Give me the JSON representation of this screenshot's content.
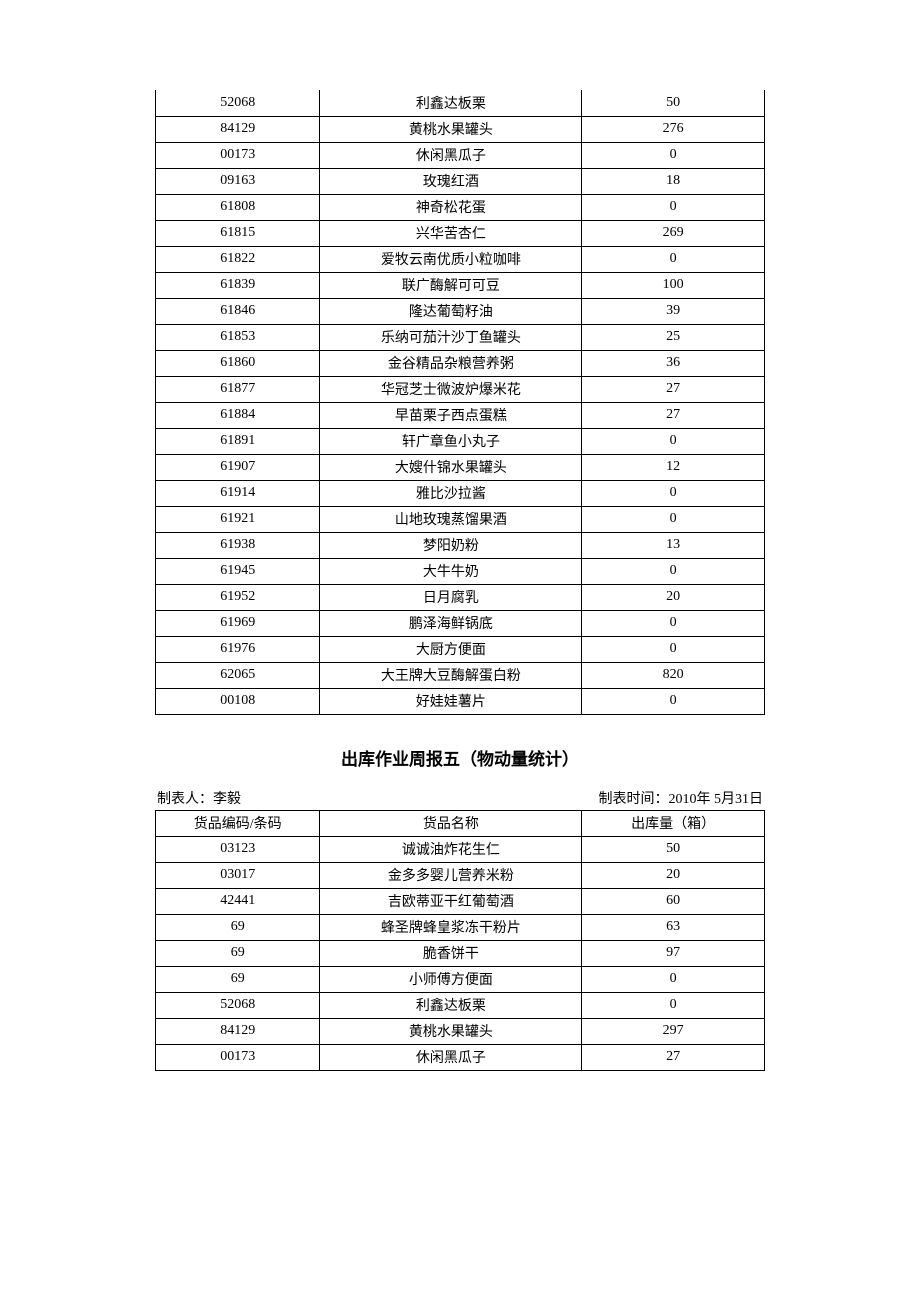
{
  "table1": {
    "rows": [
      {
        "code": "52068",
        "name": "利鑫达板栗",
        "qty": "50"
      },
      {
        "code": "84129",
        "name": "黄桃水果罐头",
        "qty": "276"
      },
      {
        "code": "00173",
        "name": "休闲黑瓜子",
        "qty": "0"
      },
      {
        "code": "09163",
        "name": "玫瑰红酒",
        "qty": "18"
      },
      {
        "code": "61808",
        "name": "神奇松花蛋",
        "qty": "0"
      },
      {
        "code": "61815",
        "name": "兴华苦杏仁",
        "qty": "269"
      },
      {
        "code": "61822",
        "name": "爱牧云南优质小粒咖啡",
        "qty": "0"
      },
      {
        "code": "61839",
        "name": "联广酶解可可豆",
        "qty": "100"
      },
      {
        "code": "61846",
        "name": "隆达葡萄籽油",
        "qty": "39"
      },
      {
        "code": "61853",
        "name": "乐纳可茄汁沙丁鱼罐头",
        "qty": "25"
      },
      {
        "code": "61860",
        "name": "金谷精品杂粮营养粥",
        "qty": "36"
      },
      {
        "code": "61877",
        "name": "华冠芝士微波炉爆米花",
        "qty": "27"
      },
      {
        "code": "61884",
        "name": "早苗栗子西点蛋糕",
        "qty": "27"
      },
      {
        "code": "61891",
        "name": "轩广章鱼小丸子",
        "qty": "0"
      },
      {
        "code": "61907",
        "name": "大嫂什锦水果罐头",
        "qty": "12"
      },
      {
        "code": "61914",
        "name": "雅比沙拉酱",
        "qty": "0"
      },
      {
        "code": "61921",
        "name": "山地玫瑰蒸馏果酒",
        "qty": "0"
      },
      {
        "code": "61938",
        "name": "梦阳奶粉",
        "qty": "13"
      },
      {
        "code": "61945",
        "name": "大牛牛奶",
        "qty": "0"
      },
      {
        "code": "61952",
        "name": "日月腐乳",
        "qty": "20"
      },
      {
        "code": "61969",
        "name": "鹏泽海鲜锅底",
        "qty": "0"
      },
      {
        "code": "61976",
        "name": "大厨方便面",
        "qty": "0"
      },
      {
        "code": "62065",
        "name": "大王牌大豆酶解蛋白粉",
        "qty": "820"
      },
      {
        "code": "00108",
        "name": "好娃娃薯片",
        "qty": "0"
      }
    ]
  },
  "section2": {
    "title": "出库作业周报五（物动量统计）",
    "preparer_label": "制表人：",
    "preparer_name": "李毅",
    "time_label": "制表时间：",
    "time_value": "2010年 5月31日",
    "headers": {
      "code": "货品编码/条码",
      "name": "货品名称",
      "qty": "出库量（箱）"
    },
    "rows": [
      {
        "code": "03123",
        "name": "诚诚油炸花生仁",
        "qty": "50"
      },
      {
        "code": "03017",
        "name": "金多多婴儿营养米粉",
        "qty": "20"
      },
      {
        "code": "42441",
        "name": "吉欧蒂亚干红葡萄酒",
        "qty": "60"
      },
      {
        "code": "69",
        "name": "蜂圣牌蜂皇浆冻干粉片",
        "qty": "63"
      },
      {
        "code": "69",
        "name": "脆香饼干",
        "qty": "97"
      },
      {
        "code": "69",
        "name": "小师傅方便面",
        "qty": "0"
      },
      {
        "code": "52068",
        "name": "利鑫达板栗",
        "qty": "0"
      },
      {
        "code": "84129",
        "name": "黄桃水果罐头",
        "qty": "297"
      },
      {
        "code": "00173",
        "name": "休闲黑瓜子",
        "qty": "27"
      }
    ]
  }
}
